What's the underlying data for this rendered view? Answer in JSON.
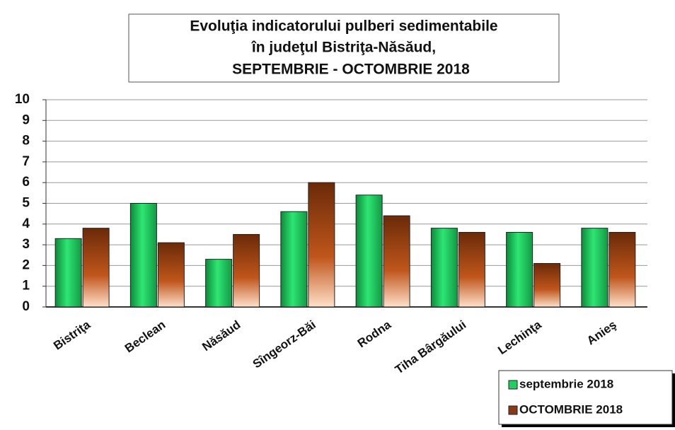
{
  "chart_data": {
    "type": "bar",
    "title": [
      "Evoluţia indicatorului pulberi sedimentabile",
      "în judeţul Bistriţa-Năsăud,",
      "SEPTEMBRIE - OCTOMBRIE 2018"
    ],
    "categories": [
      "Bistriţa",
      "Beclean",
      "Năsăud",
      "Sîngeorz-Băi",
      "Rodna",
      "Tiha Bârgăului",
      "Lechinţa",
      "Anieş"
    ],
    "series": [
      {
        "name": "septembrie 2018",
        "color": "#1fcf63",
        "values": [
          3.3,
          5.0,
          2.3,
          4.6,
          5.4,
          3.8,
          3.6,
          3.8
        ]
      },
      {
        "name": "OCTOMBRIE 2018",
        "color": "#8a3a12",
        "values": [
          3.8,
          3.1,
          3.5,
          6.0,
          4.4,
          3.6,
          2.1,
          3.6
        ]
      }
    ],
    "ylim": [
      0,
      10
    ],
    "yticks": [
      0,
      1,
      2,
      3,
      4,
      5,
      6,
      7,
      8,
      9,
      10
    ],
    "grid": true,
    "legend": "bottom-right"
  }
}
